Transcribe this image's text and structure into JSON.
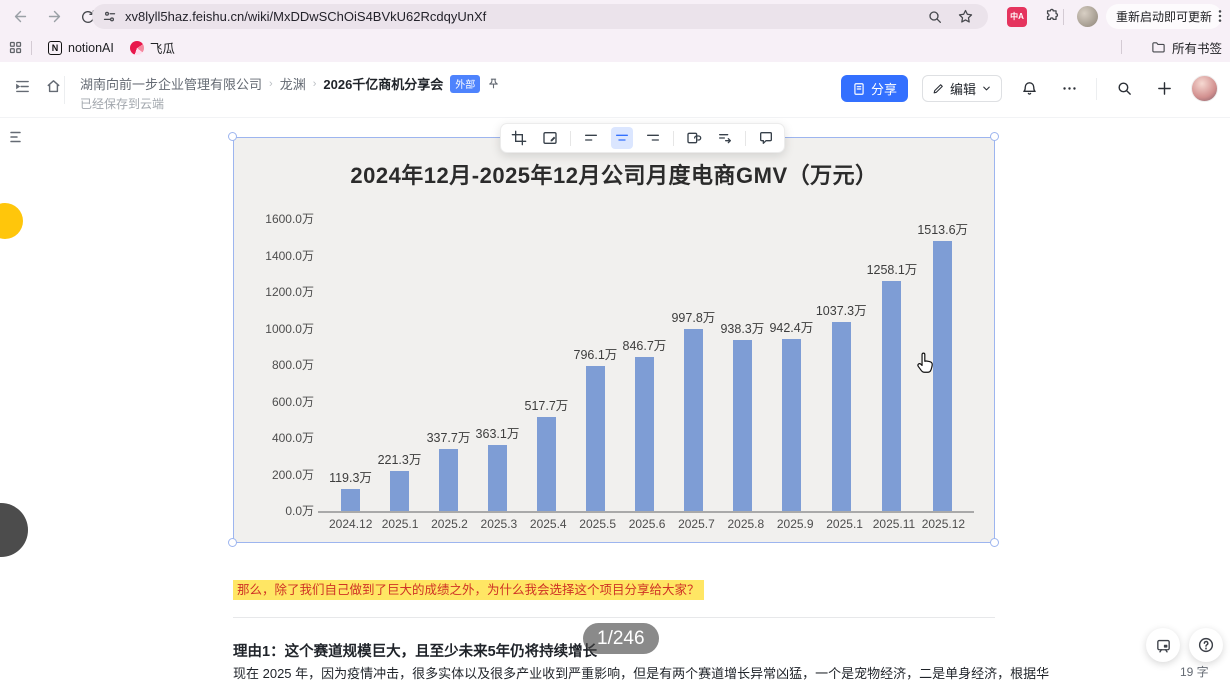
{
  "browser": {
    "url": "xv8lyll5haz.feishu.cn/wiki/MxDDwSChOiS4BVkU62RcdqyUnXf",
    "translate_badge": "中A",
    "update_button": "重新启动即可更新",
    "bookmarks": [
      "notionAI",
      "飞瓜"
    ],
    "all_bookmarks_label": "所有书签"
  },
  "doc_header": {
    "breadcrumb": [
      "湖南向前一步企业管理有限公司",
      "龙渊",
      "2026千亿商机分享会"
    ],
    "external_badge": "外部",
    "save_status": "已经保存到云端",
    "share_button": "分享",
    "edit_button": "编辑"
  },
  "content": {
    "highlight_text": "那么，除了我们自己做到了巨大的成绩之外，为什么我会选择这个项目分享给大家？",
    "reason_heading": "理由1：这个赛道规模巨大，且至少未来5年仍将持续增长",
    "page_indicator": "1/246",
    "body_text": "现在 2025 年，因为疫情冲击，很多实体以及很多产业收到严重影响，但是有两个赛道增长异常凶猛，一个是宠物经济，二是单身经济，根据华",
    "word_count": "19 字"
  },
  "chart_data": {
    "type": "bar",
    "title": "2024年12月-2025年12月公司月度电商GMV（万元）",
    "categories": [
      "2024.12",
      "2025.1",
      "2025.2",
      "2025.3",
      "2025.4",
      "2025.5",
      "2025.6",
      "2025.7",
      "2025.8",
      "2025.9",
      "2025.1",
      "2025.11",
      "2025.12"
    ],
    "values": [
      119.3,
      221.3,
      337.7,
      363.1,
      517.7,
      796.1,
      846.7,
      997.8,
      938.3,
      942.4,
      1037.3,
      1258.1,
      1513.6
    ],
    "value_labels": [
      "119.3万",
      "221.3万",
      "337.7万",
      "363.1万",
      "517.7万",
      "796.1万",
      "846.7万",
      "997.8万",
      "938.3万",
      "942.4万",
      "1037.3万",
      "1258.1万",
      "1513.6万"
    ],
    "y_ticks": [
      "1600.0万",
      "1400.0万",
      "1200.0万",
      "1000.0万",
      "800.0万",
      "600.0万",
      "400.0万",
      "200.0万",
      "0.0万"
    ],
    "ylim": [
      0,
      1600
    ],
    "xlabel": "",
    "ylabel": "",
    "grid": false,
    "legend": "none",
    "bar_color": "#7e9dd5"
  },
  "colors": {
    "accent_blue": "#3370ff",
    "external_badge_bg": "#4e83fd",
    "highlight_bg": "#ffe664",
    "highlight_text": "#cf3325",
    "chrome_theme": "#f7f0f7",
    "chart_bg": "#f1f0ee"
  }
}
